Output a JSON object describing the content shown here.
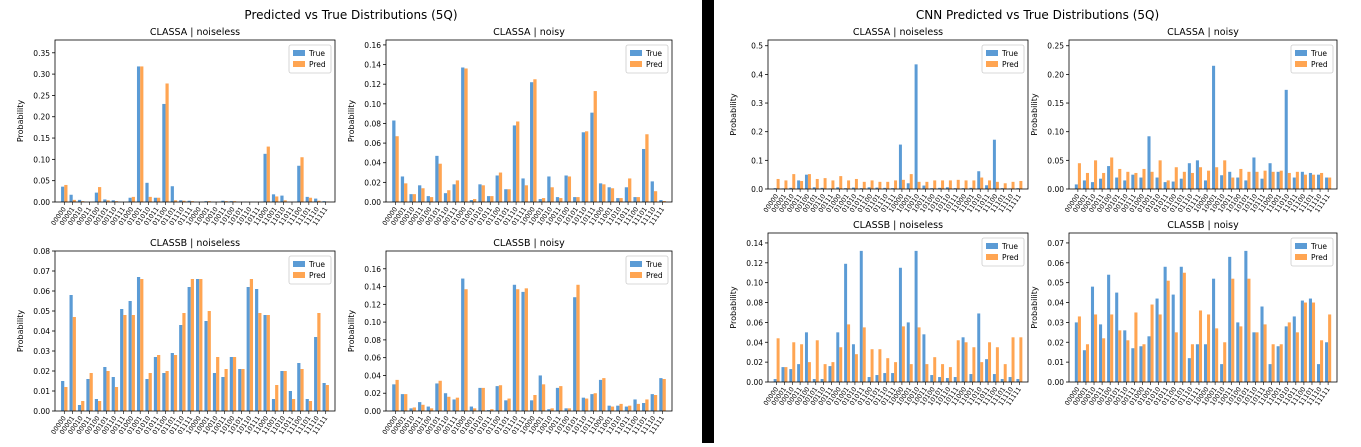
{
  "labels": [
    "00000",
    "00001",
    "00010",
    "00011",
    "00100",
    "00101",
    "00110",
    "00111",
    "01000",
    "01001",
    "01010",
    "01011",
    "01100",
    "01101",
    "01110",
    "01111",
    "10000",
    "10001",
    "10010",
    "10011",
    "10100",
    "10101",
    "10110",
    "10111",
    "11000",
    "11001",
    "11010",
    "11011",
    "11100",
    "11101",
    "11110",
    "11111"
  ],
  "colors": {
    "true": "#5b9bd5",
    "pred": "#ffa552"
  },
  "figures": [
    {
      "title": "Predicted vs True Distributions (5Q)",
      "chart_data": [
        {
          "type": "bar",
          "title": "CLASSA | noiseless",
          "ylabel": "Probability",
          "legend": [
            "True",
            "Pred"
          ],
          "legend_position": "top-right",
          "ylim": [
            0,
            0.38
          ],
          "yticks": [
            "0.00",
            "0.05",
            "0.10",
            "0.15",
            "0.20",
            "0.25",
            "0.30",
            "0.35"
          ],
          "ytick_values": [
            0,
            0.05,
            0.1,
            0.15,
            0.2,
            0.25,
            0.3,
            0.35
          ],
          "series": [
            {
              "name": "True",
              "values": [
                0.036,
                0.017,
                0.005,
                0.0,
                0.022,
                0.006,
                0.004,
                0.0,
                0.01,
                0.318,
                0.045,
                0.01,
                0.23,
                0.037,
                0.004,
                0.003,
                0.0,
                0.002,
                0.0,
                0.003,
                0.002,
                0.0,
                0.0,
                0.0,
                0.113,
                0.018,
                0.015,
                0.0,
                0.085,
                0.012,
                0.008,
                0.002
              ]
            },
            {
              "name": "Pred",
              "values": [
                0.04,
                0.005,
                0.002,
                0.0,
                0.035,
                0.004,
                0.002,
                0.0,
                0.012,
                0.318,
                0.012,
                0.01,
                0.278,
                0.004,
                0.003,
                0.002,
                0.0,
                0.002,
                0.0,
                0.002,
                0.002,
                0.0,
                0.0,
                0.0,
                0.13,
                0.013,
                0.004,
                0.0,
                0.105,
                0.01,
                0.003,
                0.001
              ]
            }
          ]
        },
        {
          "type": "bar",
          "title": "CLASSA | noisy",
          "ylabel": "Probability",
          "legend": [
            "True",
            "Pred"
          ],
          "legend_position": "top-right",
          "ylim": [
            0,
            0.165
          ],
          "yticks": [
            "0.00",
            "0.02",
            "0.04",
            "0.06",
            "0.08",
            "0.10",
            "0.12",
            "0.14",
            "0.16"
          ],
          "ytick_values": [
            0,
            0.02,
            0.04,
            0.06,
            0.08,
            0.1,
            0.12,
            0.14,
            0.16
          ],
          "series": [
            {
              "name": "True",
              "values": [
                0.083,
                0.026,
                0.008,
                0.017,
                0.006,
                0.047,
                0.009,
                0.018,
                0.137,
                0.002,
                0.018,
                0.006,
                0.027,
                0.013,
                0.078,
                0.024,
                0.122,
                0.003,
                0.026,
                0.005,
                0.027,
                0.005,
                0.071,
                0.091,
                0.019,
                0.015,
                0.004,
                0.015,
                0.005,
                0.054,
                0.021,
                0.002
              ]
            },
            {
              "name": "Pred",
              "values": [
                0.067,
                0.019,
                0.008,
                0.014,
                0.005,
                0.039,
                0.012,
                0.022,
                0.136,
                0.003,
                0.017,
                0.006,
                0.03,
                0.013,
                0.082,
                0.017,
                0.125,
                0.004,
                0.015,
                0.004,
                0.026,
                0.005,
                0.072,
                0.113,
                0.018,
                0.014,
                0.004,
                0.024,
                0.005,
                0.069,
                0.011,
                0.001
              ]
            }
          ]
        },
        {
          "type": "bar",
          "title": "CLASSB | noiseless",
          "ylabel": "Probability",
          "legend": [
            "True",
            "Pred"
          ],
          "legend_position": "top-right",
          "ylim": [
            0,
            0.08
          ],
          "yticks": [
            "0.00",
            "0.01",
            "0.02",
            "0.03",
            "0.04",
            "0.05",
            "0.06",
            "0.07",
            "0.08"
          ],
          "ytick_values": [
            0,
            0.01,
            0.02,
            0.03,
            0.04,
            0.05,
            0.06,
            0.07,
            0.08
          ],
          "series": [
            {
              "name": "True",
              "values": [
                0.015,
                0.058,
                0.003,
                0.016,
                0.006,
                0.022,
                0.017,
                0.051,
                0.055,
                0.067,
                0.016,
                0.027,
                0.019,
                0.029,
                0.043,
                0.062,
                0.066,
                0.045,
                0.019,
                0.017,
                0.027,
                0.021,
                0.062,
                0.061,
                0.048,
                0.006,
                0.02,
                0.01,
                0.024,
                0.006,
                0.037,
                0.014
              ]
            },
            {
              "name": "Pred",
              "values": [
                0.012,
                0.047,
                0.005,
                0.019,
                0.005,
                0.02,
                0.012,
                0.048,
                0.048,
                0.066,
                0.019,
                0.028,
                0.02,
                0.028,
                0.049,
                0.066,
                0.066,
                0.05,
                0.027,
                0.021,
                0.027,
                0.021,
                0.066,
                0.049,
                0.048,
                0.013,
                0.02,
                0.006,
                0.021,
                0.005,
                0.049,
                0.013
              ]
            }
          ]
        },
        {
          "type": "bar",
          "title": "CLASSB | noisy",
          "ylabel": "Probability",
          "legend": [
            "True",
            "Pred"
          ],
          "legend_position": "top-right",
          "ylim": [
            0,
            0.18
          ],
          "yticks": [
            "0.00",
            "0.02",
            "0.04",
            "0.06",
            "0.08",
            "0.10",
            "0.12",
            "0.14",
            "0.16"
          ],
          "ytick_values": [
            0,
            0.02,
            0.04,
            0.06,
            0.08,
            0.1,
            0.12,
            0.14,
            0.16
          ],
          "series": [
            {
              "name": "True",
              "values": [
                0.03,
                0.019,
                0.003,
                0.01,
                0.005,
                0.031,
                0.02,
                0.013,
                0.149,
                0.005,
                0.026,
                0.001,
                0.028,
                0.012,
                0.142,
                0.134,
                0.012,
                0.04,
                0.002,
                0.026,
                0.003,
                0.128,
                0.015,
                0.019,
                0.035,
                0.006,
                0.006,
                0.005,
                0.013,
                0.009,
                0.019,
                0.037
              ]
            },
            {
              "name": "Pred",
              "values": [
                0.035,
                0.019,
                0.004,
                0.007,
                0.003,
                0.034,
                0.016,
                0.015,
                0.137,
                0.003,
                0.026,
                0.002,
                0.029,
                0.014,
                0.137,
                0.138,
                0.018,
                0.03,
                0.003,
                0.028,
                0.003,
                0.142,
                0.014,
                0.02,
                0.037,
                0.005,
                0.008,
                0.006,
                0.008,
                0.013,
                0.018,
                0.036
              ]
            }
          ]
        }
      ]
    },
    {
      "title": "CNN Predicted vs True Distributions (5Q)",
      "chart_data": [
        {
          "type": "bar",
          "title": "CLASSA | noiseless",
          "ylabel": "Probability",
          "legend": [
            "True",
            "Pred"
          ],
          "legend_position": "top-right",
          "ylim": [
            0,
            0.52
          ],
          "yticks": [
            "0.0",
            "0.1",
            "0.2",
            "0.3",
            "0.4",
            "0.5"
          ],
          "ytick_values": [
            0,
            0.1,
            0.2,
            0.3,
            0.4,
            0.5
          ],
          "series": [
            {
              "name": "True",
              "values": [
                0.003,
                0.002,
                0.004,
                0.03,
                0.05,
                0.006,
                0.004,
                0.002,
                0.006,
                0.003,
                0.005,
                0.003,
                0.006,
                0.005,
                0.004,
                0.003,
                0.155,
                0.02,
                0.435,
                0.012,
                0.003,
                0.004,
                0.006,
                0.003,
                0.003,
                0.004,
                0.062,
                0.013,
                0.172,
                0.003,
                0.002,
                0.003
              ]
            },
            {
              "name": "Pred",
              "values": [
                0.035,
                0.03,
                0.052,
                0.028,
                0.052,
                0.035,
                0.038,
                0.03,
                0.045,
                0.03,
                0.035,
                0.025,
                0.03,
                0.025,
                0.025,
                0.03,
                0.032,
                0.052,
                0.025,
                0.025,
                0.03,
                0.03,
                0.03,
                0.032,
                0.03,
                0.03,
                0.04,
                0.03,
                0.025,
                0.02,
                0.025,
                0.028
              ]
            }
          ]
        },
        {
          "type": "bar",
          "title": "CLASSA | noisy",
          "ylabel": "Probability",
          "legend": [
            "True",
            "Pred"
          ],
          "legend_position": "top-right",
          "ylim": [
            0,
            0.26
          ],
          "yticks": [
            "0.00",
            "0.05",
            "0.10",
            "0.15",
            "0.20",
            "0.25"
          ],
          "ytick_values": [
            0,
            0.05,
            0.1,
            0.15,
            0.2,
            0.25
          ],
          "series": [
            {
              "name": "True",
              "values": [
                0.008,
                0.015,
                0.012,
                0.018,
                0.04,
                0.02,
                0.015,
                0.025,
                0.02,
                0.092,
                0.02,
                0.012,
                0.013,
                0.018,
                0.045,
                0.05,
                0.015,
                0.215,
                0.024,
                0.03,
                0.02,
                0.015,
                0.055,
                0.018,
                0.045,
                0.03,
                0.173,
                0.02,
                0.03,
                0.028,
                0.025,
                0.02
              ]
            },
            {
              "name": "Pred",
              "values": [
                0.045,
                0.028,
                0.05,
                0.028,
                0.055,
                0.035,
                0.03,
                0.028,
                0.035,
                0.03,
                0.05,
                0.015,
                0.038,
                0.03,
                0.028,
                0.038,
                0.032,
                0.038,
                0.05,
                0.02,
                0.035,
                0.03,
                0.03,
                0.032,
                0.03,
                0.032,
                0.028,
                0.03,
                0.025,
                0.025,
                0.028,
                0.02
              ]
            }
          ]
        },
        {
          "type": "bar",
          "title": "CLASSB | noiseless",
          "ylabel": "Probability",
          "legend": [
            "True",
            "Pred"
          ],
          "legend_position": "top-right",
          "ylim": [
            0,
            0.15
          ],
          "yticks": [
            "0.00",
            "0.02",
            "0.04",
            "0.06",
            "0.08",
            "0.10",
            "0.12",
            "0.14"
          ],
          "ytick_values": [
            0,
            0.02,
            0.04,
            0.06,
            0.08,
            0.1,
            0.12,
            0.14
          ],
          "series": [
            {
              "name": "True",
              "values": [
                0.003,
                0.015,
                0.013,
                0.018,
                0.05,
                0.003,
                0.003,
                0.016,
                0.05,
                0.119,
                0.038,
                0.132,
                0.005,
                0.007,
                0.009,
                0.009,
                0.115,
                0.06,
                0.132,
                0.048,
                0.007,
                0.005,
                0.004,
                0.005,
                0.045,
                0.008,
                0.069,
                0.023,
                0.008,
                0.003,
                0.005,
                0.003
              ]
            },
            {
              "name": "Pred",
              "values": [
                0.044,
                0.015,
                0.04,
                0.038,
                0.02,
                0.042,
                0.018,
                0.02,
                0.035,
                0.058,
                0.028,
                0.055,
                0.033,
                0.033,
                0.024,
                0.02,
                0.056,
                0.018,
                0.055,
                0.018,
                0.025,
                0.018,
                0.015,
                0.042,
                0.04,
                0.035,
                0.02,
                0.04,
                0.035,
                0.018,
                0.045,
                0.045
              ]
            }
          ]
        },
        {
          "type": "bar",
          "title": "CLASSB | noisy",
          "ylabel": "Probability",
          "legend": [
            "True",
            "Pred"
          ],
          "legend_position": "top-right",
          "ylim": [
            0,
            0.075
          ],
          "yticks": [
            "0.00",
            "0.01",
            "0.02",
            "0.03",
            "0.04",
            "0.05",
            "0.06",
            "0.07"
          ],
          "ytick_values": [
            0,
            0.01,
            0.02,
            0.03,
            0.04,
            0.05,
            0.06,
            0.07
          ],
          "series": [
            {
              "name": "True",
              "values": [
                0.03,
                0.016,
                0.048,
                0.029,
                0.054,
                0.045,
                0.026,
                0.017,
                0.018,
                0.023,
                0.042,
                0.058,
                0.044,
                0.058,
                0.012,
                0.019,
                0.019,
                0.052,
                0.009,
                0.063,
                0.03,
                0.066,
                0.025,
                0.038,
                0.009,
                0.018,
                0.028,
                0.033,
                0.041,
                0.042,
                0.009,
                0.02
              ]
            },
            {
              "name": "Pred",
              "values": [
                0.033,
                0.019,
                0.034,
                0.022,
                0.034,
                0.026,
                0.021,
                0.035,
                0.019,
                0.039,
                0.034,
                0.051,
                0.025,
                0.055,
                0.019,
                0.036,
                0.034,
                0.027,
                0.02,
                0.052,
                0.028,
                0.052,
                0.025,
                0.029,
                0.019,
                0.019,
                0.03,
                0.025,
                0.04,
                0.04,
                0.021,
                0.034
              ]
            }
          ]
        }
      ]
    }
  ]
}
